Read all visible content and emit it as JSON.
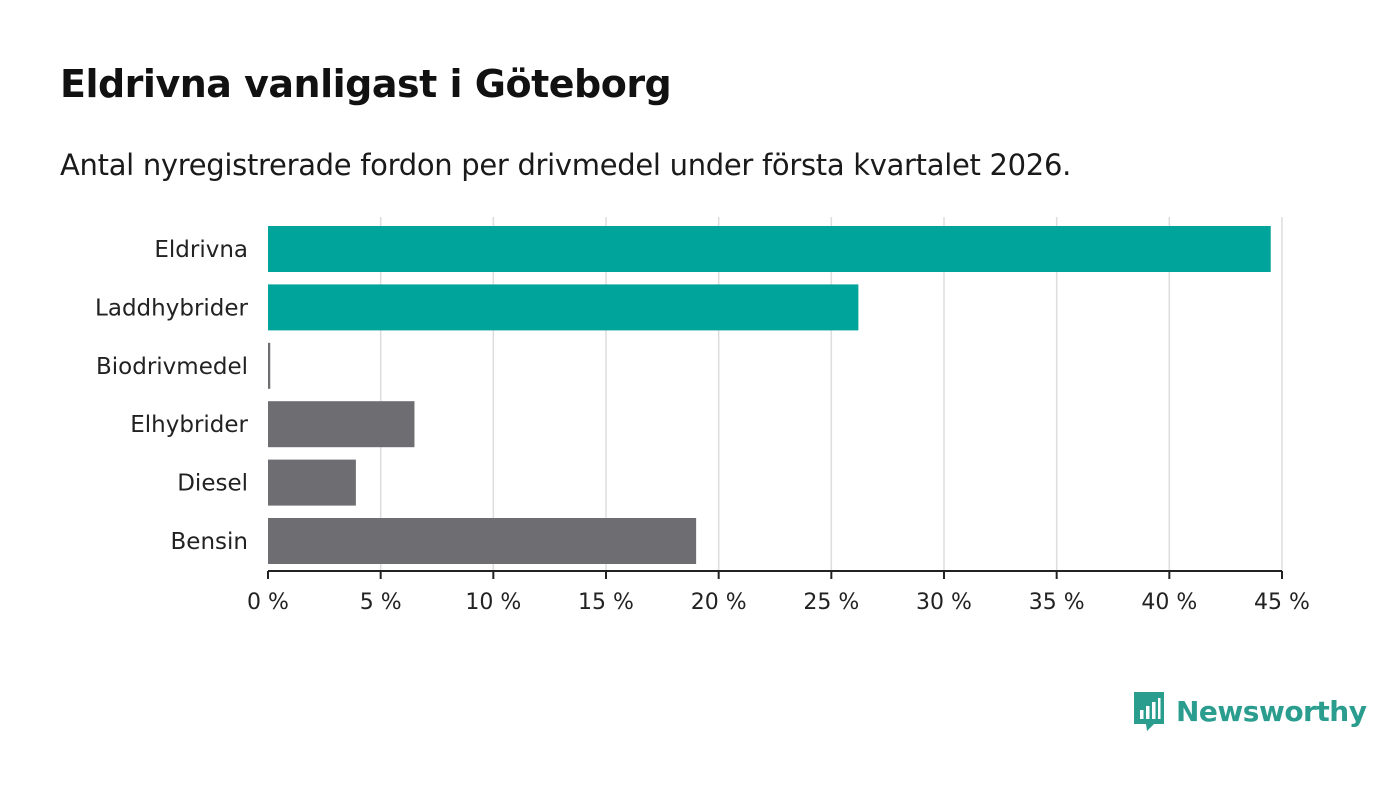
{
  "header": {
    "title": "Eldrivna vanligast i Göteborg",
    "subtitle": "Antal nyregistrerade fordon per drivmedel under första kvartalet 2026."
  },
  "chart_data": {
    "type": "bar",
    "orientation": "horizontal",
    "categories": [
      "Eldrivna",
      "Laddhybrider",
      "Biodrivmedel",
      "Elhybrider",
      "Diesel",
      "Bensin"
    ],
    "values": [
      44.5,
      26.2,
      0.1,
      6.5,
      3.9,
      19.0
    ],
    "highlight": [
      true,
      true,
      false,
      false,
      false,
      false
    ],
    "xlim": [
      0,
      45
    ],
    "xticks": [
      0,
      5,
      10,
      15,
      20,
      25,
      30,
      35,
      40,
      45
    ],
    "tick_suffix": " %",
    "xlabel": "",
    "ylabel": "",
    "grid": true,
    "colors": {
      "highlight": "#00a49a",
      "other": "#6e6d72",
      "grid": "#dddddd",
      "axis": "#222222"
    }
  },
  "brand": {
    "name": "Newsworthy",
    "color": "#2a9d8f",
    "icon": "newsworthy-logo-icon"
  }
}
